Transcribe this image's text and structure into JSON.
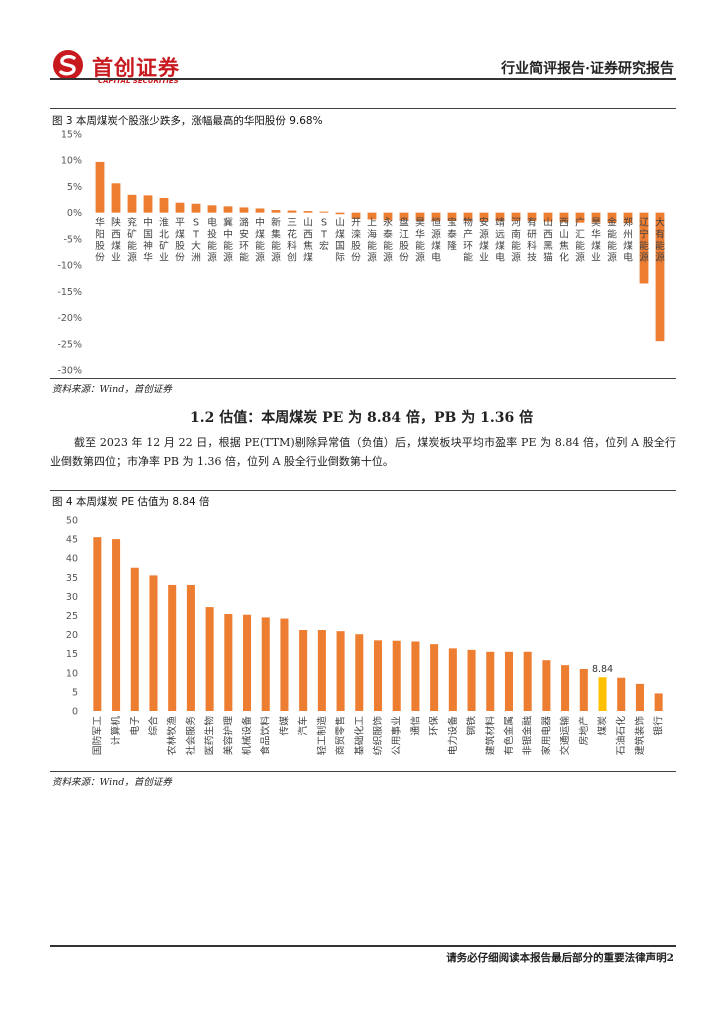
{
  "header": {
    "logo_cn": "首创证券",
    "logo_en": "CAPITAL SECURITIES",
    "report_type": "行业简评报告·证券研究报告"
  },
  "figure3": {
    "title": "图 3 本周煤炭个股涨少跌多，涨幅最高的华阳股份 9.68%",
    "source": "资料来源：Wind，首创证券"
  },
  "section": {
    "title": "1.2 估值：本周煤炭 PE 为 8.84 倍，PB 为 1.36 倍",
    "paragraph": "截至 2023 年 12 月 22 日，根据 PE(TTM)剔除异常值（负值）后，煤炭板块平均市盈率 PE 为 8.84 倍，位列 A 股全行业倒数第四位；市净率 PB 为 1.36 倍，位列 A 股全行业倒数第十位。"
  },
  "figure4": {
    "title": "图 4 本周煤炭 PE 估值为 8.84 倍",
    "source": "资料来源：Wind，首创证券",
    "highlight_label": "8.84"
  },
  "footer": {
    "text": "请务必仔细阅读本报告最后部分的重要法律声明2"
  },
  "colors": {
    "bar": "#ed7d31",
    "highlight": "#ffc000",
    "brand_red": "#c8191f"
  },
  "chart_data": [
    {
      "type": "bar",
      "title": "",
      "xlabel": "",
      "ylabel": "",
      "unit": "%",
      "ylim": [
        -30,
        15
      ],
      "yticks": [
        15,
        10,
        5,
        0,
        -5,
        -10,
        -15,
        -20,
        -25,
        -30
      ],
      "ytick_labels": [
        "15%",
        "10%",
        "5%",
        "0%",
        "-5%",
        "-10%",
        "-15%",
        "-20%",
        "-25%",
        "-30%"
      ],
      "categories": [
        "华阳股份",
        "陕西煤业",
        "兖矿能源",
        "中国神华",
        "淮北矿业",
        "平煤股份",
        "ST大洲",
        "电投能源",
        "冀中能源",
        "潞安环能",
        "中煤能源",
        "新集能源",
        "三花科创",
        "山西焦煤",
        "ST宏",
        "山煤国际",
        "开滦股份",
        "上海能源",
        "永泰能源",
        "盘江股份",
        "昊华能源",
        "恒源煤电",
        "宝泰隆",
        "物产环能",
        "安源煤业",
        "靖远煤电",
        "河南能源",
        "有研科技",
        "山西黑猫",
        "西山焦化",
        "广汇能源",
        "昊华煤业",
        "金能能源",
        "郑州煤电",
        "辽宁能源",
        "大有能源"
      ],
      "values": [
        9.68,
        5.6,
        3.4,
        3.3,
        2.8,
        1.9,
        1.7,
        1.4,
        1.2,
        1.0,
        0.8,
        0.5,
        0.4,
        0.3,
        0.2,
        -0.3,
        -1.2,
        -1.3,
        -1.5,
        -1.5,
        -1.6,
        -1.6,
        -1.6,
        -1.6,
        -1.6,
        -1.6,
        -1.6,
        -1.6,
        -1.7,
        -1.8,
        -1.9,
        -1.9,
        -2.0,
        -2.0,
        -13.5,
        -24.5
      ],
      "grid": false,
      "legend": "none"
    },
    {
      "type": "bar",
      "title": "",
      "xlabel": "",
      "ylabel": "",
      "ylim": [
        0,
        50
      ],
      "yticks": [
        0,
        5,
        10,
        15,
        20,
        25,
        30,
        35,
        40,
        45,
        50
      ],
      "categories": [
        "国防军工",
        "计算机",
        "电子",
        "综合",
        "农林牧渔",
        "社会服务",
        "医药生物",
        "美容护理",
        "机械设备",
        "食品饮料",
        "传媒",
        "汽车",
        "轻工制造",
        "商贸零售",
        "基础化工",
        "纺织服饰",
        "公用事业",
        "通信",
        "环保",
        "电力设备",
        "钢铁",
        "建筑材料",
        "有色金属",
        "非银金融",
        "家用电器",
        "交通运输",
        "房地产",
        "煤炭",
        "石油石化",
        "建筑装饰",
        "银行"
      ],
      "values": [
        45.5,
        45.0,
        37.5,
        35.5,
        33.0,
        33.0,
        27.2,
        25.4,
        25.2,
        24.5,
        24.2,
        21.2,
        21.2,
        20.9,
        20.1,
        18.5,
        18.4,
        18.2,
        17.5,
        16.4,
        16.0,
        15.5,
        15.5,
        15.5,
        13.3,
        12.0,
        11.0,
        8.84,
        8.7,
        7.1,
        4.6
      ],
      "highlight_category": "煤炭",
      "grid": false,
      "legend": "none"
    }
  ]
}
